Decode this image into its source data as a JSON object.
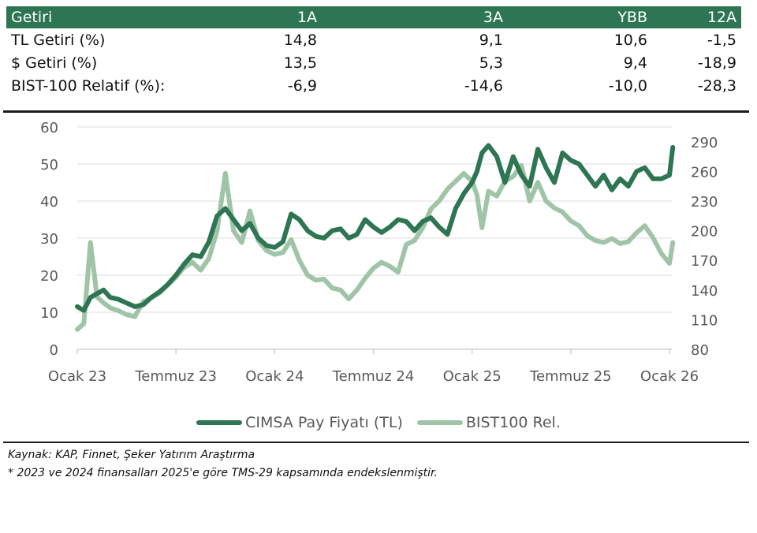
{
  "table": {
    "headers": [
      "Getiri",
      "1A",
      "3A",
      "YBB",
      "12A"
    ],
    "rows": [
      {
        "label": "TL Getiri (%)",
        "values": [
          "14,8",
          "9,1",
          "10,6",
          "-1,5"
        ]
      },
      {
        "label": "$ Getiri (%)",
        "values": [
          "13,5",
          "5,3",
          "9,4",
          "-18,9"
        ]
      },
      {
        "label": "BIST-100 Relatif (%):",
        "values": [
          "-6,9",
          "-14,6",
          "-10,0",
          "-28,3"
        ]
      }
    ],
    "header_color": "#2e7553"
  },
  "chart_data": {
    "type": "line",
    "title": "",
    "xlabel": "",
    "ylabel": "",
    "x_tick_labels": [
      "Ocak 23",
      "Temmuz 23",
      "Ocak 24",
      "Temmuz 24",
      "Ocak 25",
      "Temmuz 25",
      "Ocak 26"
    ],
    "x_range_months": [
      0,
      36.3
    ],
    "y_left": {
      "range": [
        0,
        60
      ],
      "ticks": [
        0,
        10,
        20,
        30,
        40,
        50,
        60
      ]
    },
    "y_right": {
      "range": [
        80,
        305
      ],
      "ticks": [
        80,
        110,
        140,
        170,
        200,
        230,
        260,
        290
      ]
    },
    "grid": true,
    "legend_position": "bottom",
    "series": [
      {
        "name": "CIMSA Pay Fiyatı (TL)",
        "axis": "left",
        "color": "#2e7553",
        "x_months": [
          0,
          0.4,
          0.8,
          1.2,
          1.6,
          2,
          2.5,
          3,
          3.5,
          4,
          4.5,
          5,
          5.5,
          6,
          6.5,
          7,
          7.5,
          8,
          8.5,
          9,
          9.5,
          10,
          10.5,
          11,
          11.5,
          12,
          12.5,
          13,
          13.5,
          14,
          14.5,
          15,
          15.5,
          16,
          16.5,
          17,
          17.5,
          18,
          18.5,
          19,
          19.5,
          20,
          20.5,
          21,
          21.5,
          22,
          22.5,
          23,
          23.5,
          24,
          24.3,
          24.6,
          25,
          25.5,
          26,
          26.5,
          27,
          27.5,
          28,
          28.5,
          29,
          29.5,
          30,
          30.5,
          31,
          31.5,
          32,
          32.5,
          33,
          33.5,
          34,
          34.5,
          35,
          35.5,
          36,
          36.2
        ],
        "values": [
          11.5,
          10.5,
          14,
          15,
          16,
          14,
          13.5,
          12.5,
          11.5,
          12,
          14,
          15.5,
          17.5,
          20,
          23,
          25.5,
          25,
          29,
          36,
          38,
          35,
          32,
          34,
          30,
          28,
          27.5,
          29,
          36.5,
          35,
          32,
          30.5,
          30,
          32,
          32.5,
          30,
          31,
          35,
          33,
          31.5,
          33,
          35,
          34.5,
          32,
          34.5,
          35.5,
          33,
          31,
          38,
          42,
          45,
          48,
          53,
          55,
          52,
          45,
          52,
          47,
          44,
          54,
          49,
          45,
          53,
          51,
          50,
          47,
          44,
          47,
          43,
          46,
          44,
          48,
          49,
          46,
          46,
          47,
          54.5
        ]
      },
      {
        "name": "BIST100 Rel.",
        "axis": "right",
        "color": "#a0c4a8",
        "x_months": [
          0,
          0.4,
          0.8,
          1.2,
          1.6,
          2,
          2.5,
          3,
          3.5,
          4,
          4.5,
          5,
          5.5,
          6,
          6.5,
          7,
          7.5,
          8,
          8.5,
          9,
          9.5,
          10,
          10.5,
          11,
          11.5,
          12,
          12.5,
          13,
          13.5,
          14,
          14.5,
          15,
          15.5,
          16,
          16.5,
          17,
          17.5,
          18,
          18.5,
          19,
          19.5,
          20,
          20.5,
          21,
          21.5,
          22,
          22.5,
          23,
          23.5,
          24,
          24.3,
          24.6,
          25,
          25.5,
          26,
          26.5,
          27,
          27.5,
          28,
          28.5,
          29,
          29.5,
          30,
          30.5,
          31,
          31.5,
          32,
          32.5,
          33,
          33.5,
          34,
          34.5,
          35,
          35.5,
          36,
          36.2
        ],
        "values": [
          100,
          106,
          188,
          133,
          127,
          122,
          119,
          115,
          113,
          128,
          132,
          137,
          145,
          153,
          163,
          168,
          160,
          172,
          200,
          258,
          200,
          188,
          220,
          190,
          180,
          176,
          178,
          191,
          170,
          155,
          150,
          151,
          142,
          140,
          131,
          140,
          152,
          162,
          168,
          164,
          158,
          186,
          190,
          203,
          222,
          230,
          242,
          250,
          258,
          250,
          236,
          203,
          240,
          235,
          250,
          255,
          266,
          230,
          249,
          230,
          223,
          219,
          210,
          205,
          195,
          190,
          188,
          192,
          187,
          189,
          198,
          205,
          193,
          177,
          167,
          188
        ]
      }
    ]
  },
  "legend": [
    {
      "label": "CIMSA Pay Fiyatı (TL)",
      "color": "#2e7553"
    },
    {
      "label": "BIST100 Rel.",
      "color": "#a0c4a8"
    }
  ],
  "notes": {
    "source": "Kaynak: KAP, Finnet, Şeker Yatırım Araştırma",
    "footnote": "* 2023 ve 2024 finansalları 2025'e göre TMS-29 kapsamında endekslenmiştir."
  }
}
